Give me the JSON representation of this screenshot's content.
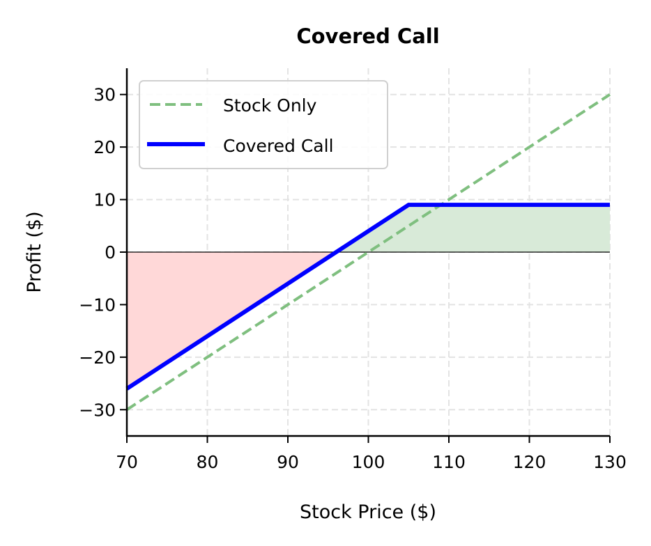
{
  "chart_data": {
    "type": "line",
    "title": "Covered Call",
    "xlabel": "Stock Price ($)",
    "ylabel": "Profit ($)",
    "xlim": [
      70,
      130
    ],
    "ylim": [
      -35,
      35
    ],
    "xticks": [
      70,
      80,
      90,
      100,
      110,
      120,
      130
    ],
    "yticks": [
      -30,
      -20,
      -10,
      0,
      10,
      20,
      30
    ],
    "ytick_labels": [
      "−30",
      "−20",
      "−10",
      "0",
      "10",
      "20",
      "30"
    ],
    "grid": true,
    "legend_position": "upper left",
    "series": [
      {
        "name": "Stock Only",
        "style": "dashed",
        "color": "#7fbf7f",
        "x": [
          70,
          130
        ],
        "y": [
          -30,
          30
        ]
      },
      {
        "name": "Covered Call",
        "style": "solid",
        "color": "#0000ff",
        "x": [
          70,
          105,
          130
        ],
        "y": [
          -26,
          9,
          9
        ]
      }
    ],
    "fills": [
      {
        "region": "loss",
        "color": "#ffd8d8",
        "description": "Covered Call profit below 0"
      },
      {
        "region": "profit",
        "color": "#d8ead8",
        "description": "Covered Call profit above 0"
      }
    ],
    "annotations": {
      "stock_purchase_price": 100,
      "strike": 105,
      "premium": 4,
      "breakeven": 96,
      "max_profit": 9
    }
  }
}
